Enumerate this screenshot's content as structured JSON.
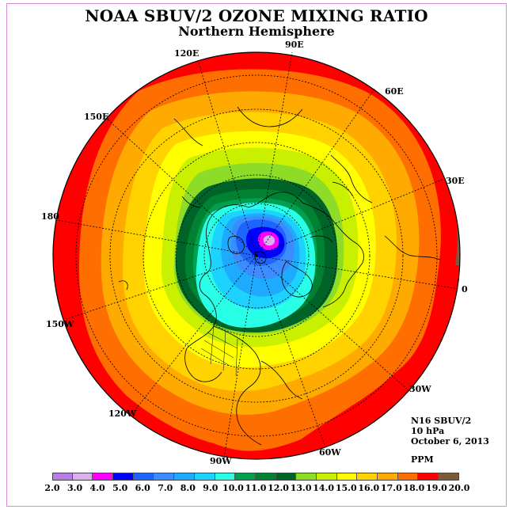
{
  "header": {
    "title": "NOAA SBUV/2 OZONE MIXING RATIO",
    "subtitle": "Northern Hemisphere"
  },
  "map": {
    "projection": "polar stereographic, north pole",
    "longitude_labels": [
      "90E",
      "60E",
      "30E",
      "0",
      "30W",
      "60W",
      "90W",
      "120W",
      "150W",
      "180",
      "150E",
      "120E"
    ],
    "field_summary": "ozone mixing ratio increasing outward from a minimum near the pole (about 4-6 ppm) to over 19 ppm near the equator edge"
  },
  "info": {
    "instrument": "N16 SBUV/2",
    "level": "10 hPa",
    "date": "October 6, 2013",
    "units": "PPM"
  },
  "colorbar": {
    "ticks": [
      "2.0",
      "3.0",
      "4.0",
      "5.0",
      "6.0",
      "7.0",
      "8.0",
      "9.0",
      "10.0",
      "11.0",
      "12.0",
      "13.0",
      "14.0",
      "15.0",
      "16.0",
      "17.0",
      "18.0",
      "19.0",
      "20.0"
    ],
    "colors": [
      "#b57fe6",
      "#d8b0ee",
      "#ff00ff",
      "#0000ff",
      "#1e64ff",
      "#3c8cff",
      "#1eaaff",
      "#1ed2ff",
      "#28ffe6",
      "#00a050",
      "#008232",
      "#006428",
      "#8cdc28",
      "#c8f000",
      "#ffff00",
      "#ffd200",
      "#ffaa00",
      "#ff6e00",
      "#ff0000",
      "#7d5a3c"
    ]
  }
}
